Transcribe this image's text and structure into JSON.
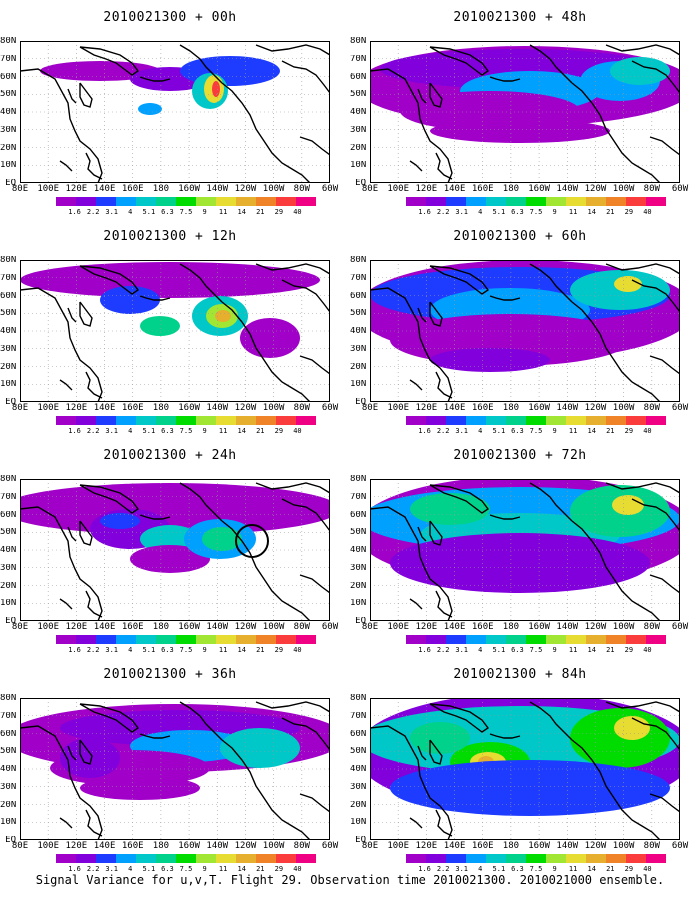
{
  "panels": [
    {
      "title": "2010021300 + 00h",
      "level": 0
    },
    {
      "title": "2010021300 + 48h",
      "level": 4
    },
    {
      "title": "2010021300 + 12h",
      "level": 1
    },
    {
      "title": "2010021300 + 60h",
      "level": 5
    },
    {
      "title": "2010021300 + 24h",
      "level": 2
    },
    {
      "title": "2010021300 + 72h",
      "level": 6
    },
    {
      "title": "2010021300 + 36h",
      "level": 3
    },
    {
      "title": "2010021300 + 84h",
      "level": 7
    }
  ],
  "y_labels": [
    "80N",
    "70N",
    "60N",
    "50N",
    "40N",
    "30N",
    "20N",
    "10N",
    "EQ"
  ],
  "x_labels": [
    "80E",
    "100E",
    "120E",
    "140E",
    "160E",
    "180",
    "160W",
    "140W",
    "120W",
    "100W",
    "80W",
    "60W"
  ],
  "colorbar": {
    "labels": [
      "1.6",
      "2.2",
      "3.1",
      "4",
      "5.1",
      "6.3",
      "7.5",
      "9",
      "11",
      "14",
      "21",
      "29",
      "40"
    ],
    "colors": [
      "#a000c8",
      "#8200dc",
      "#1e3cff",
      "#00a0ff",
      "#00c8c8",
      "#00d28c",
      "#00dc00",
      "#a0e632",
      "#e6dc32",
      "#e6af2d",
      "#f08228",
      "#fa3c3c",
      "#f00082"
    ]
  },
  "caption": "Signal Variance for u,v,T. Flight 29. Observation time 2010021300. 2010021000 ensemble."
}
